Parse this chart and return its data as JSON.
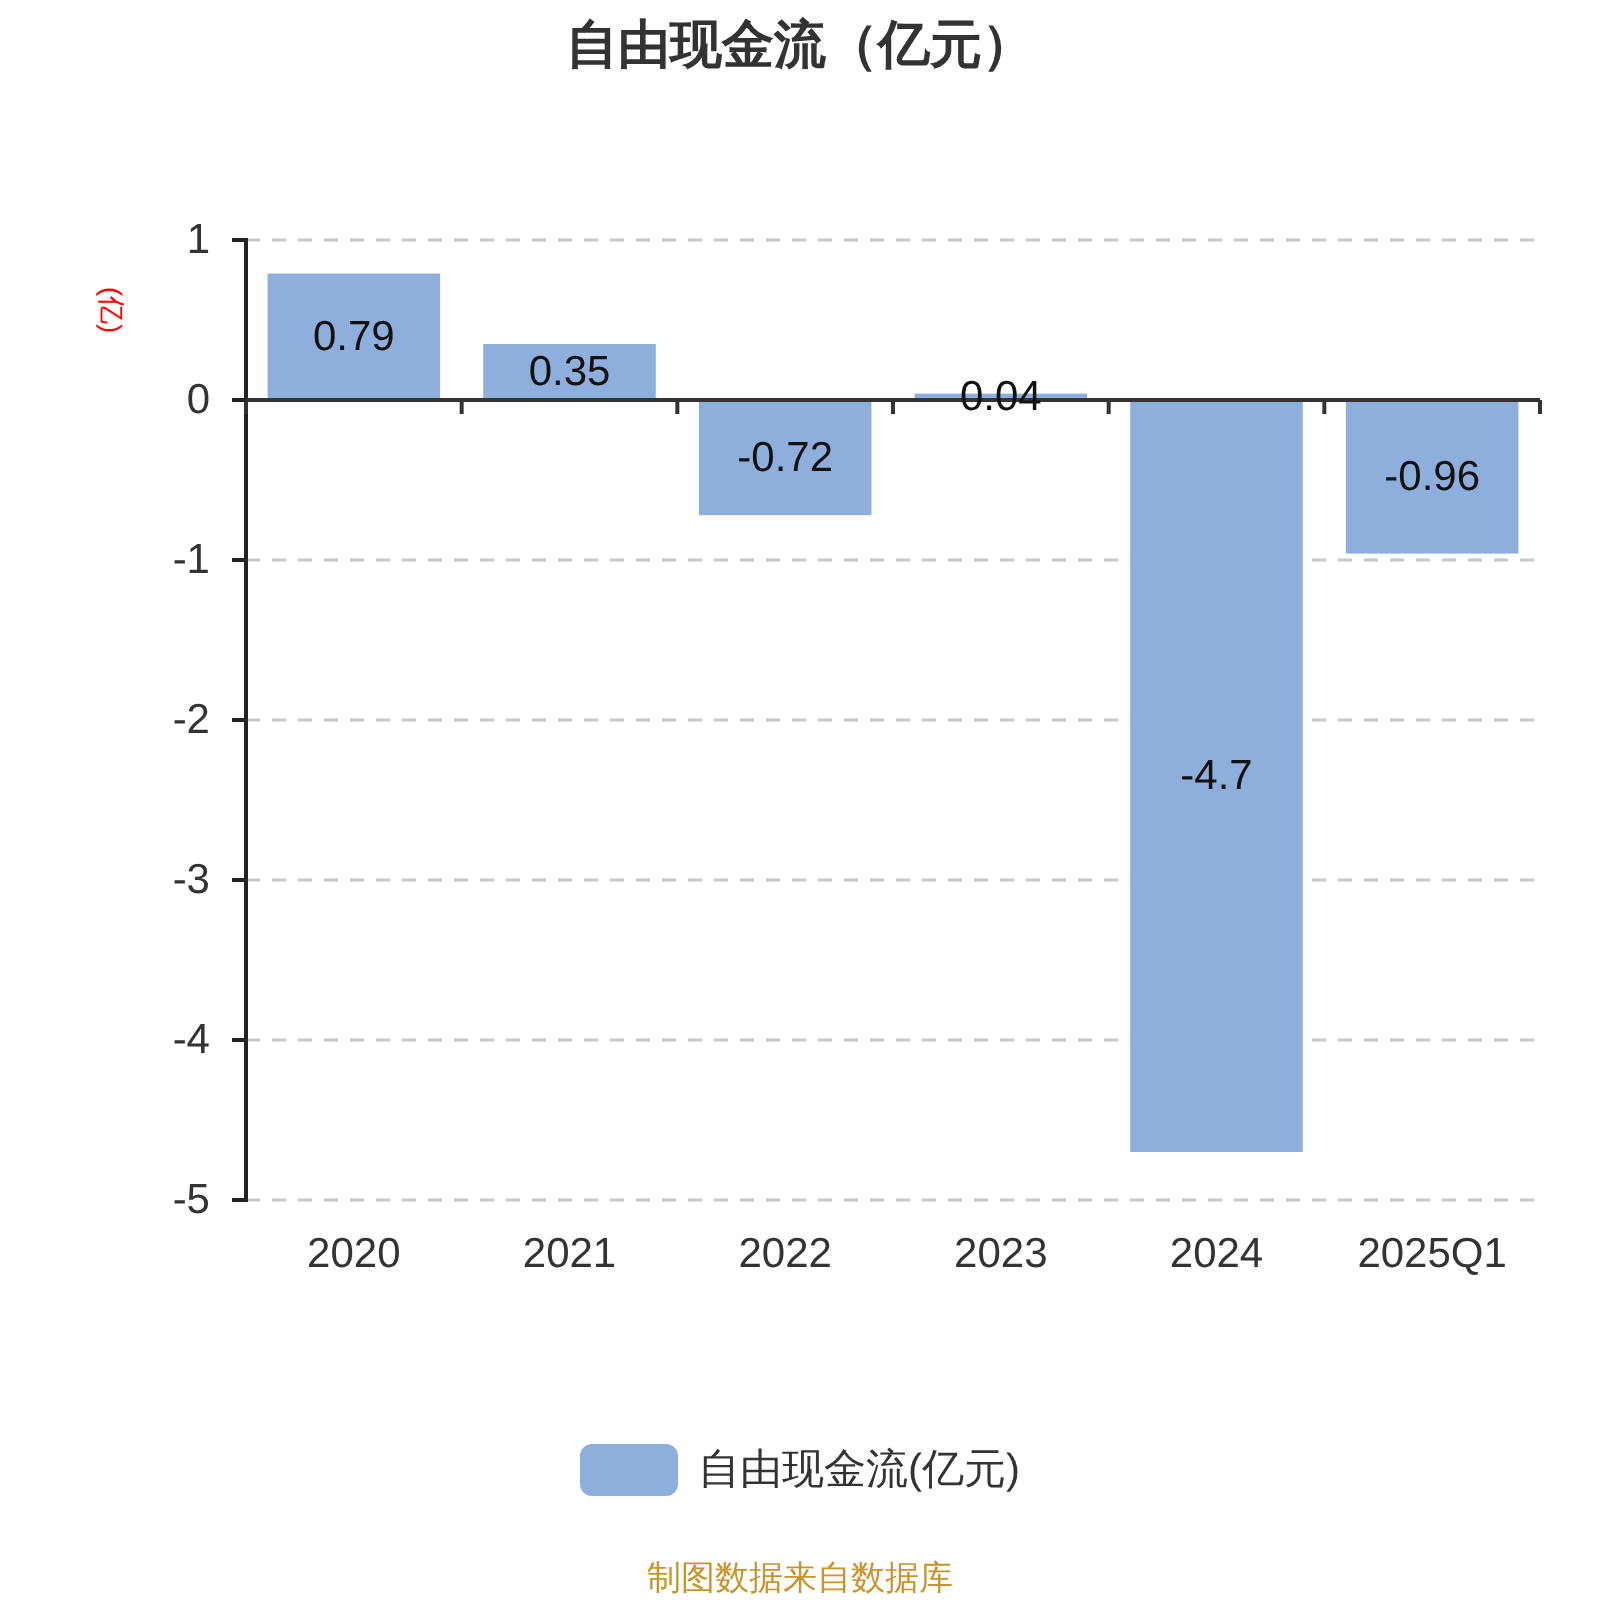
{
  "chart_data": {
    "type": "bar",
    "title": "自由现金流（亿元）",
    "ylabel": "(亿)",
    "categories": [
      "2020",
      "2021",
      "2022",
      "2023",
      "2024",
      "2025Q1"
    ],
    "series": [
      {
        "name": "自由现金流(亿元)",
        "color": "#8eaedb",
        "values": [
          0.79,
          0.35,
          -0.72,
          0.04,
          -4.7,
          -0.96
        ]
      }
    ],
    "ylim": [
      -5,
      1
    ],
    "yticks": [
      -5,
      -4,
      -3,
      -2,
      -1,
      0,
      1
    ],
    "grid": "y",
    "legend": "bottom",
    "data_labels": true,
    "annotations": [
      "制图数据来自数据库"
    ]
  }
}
